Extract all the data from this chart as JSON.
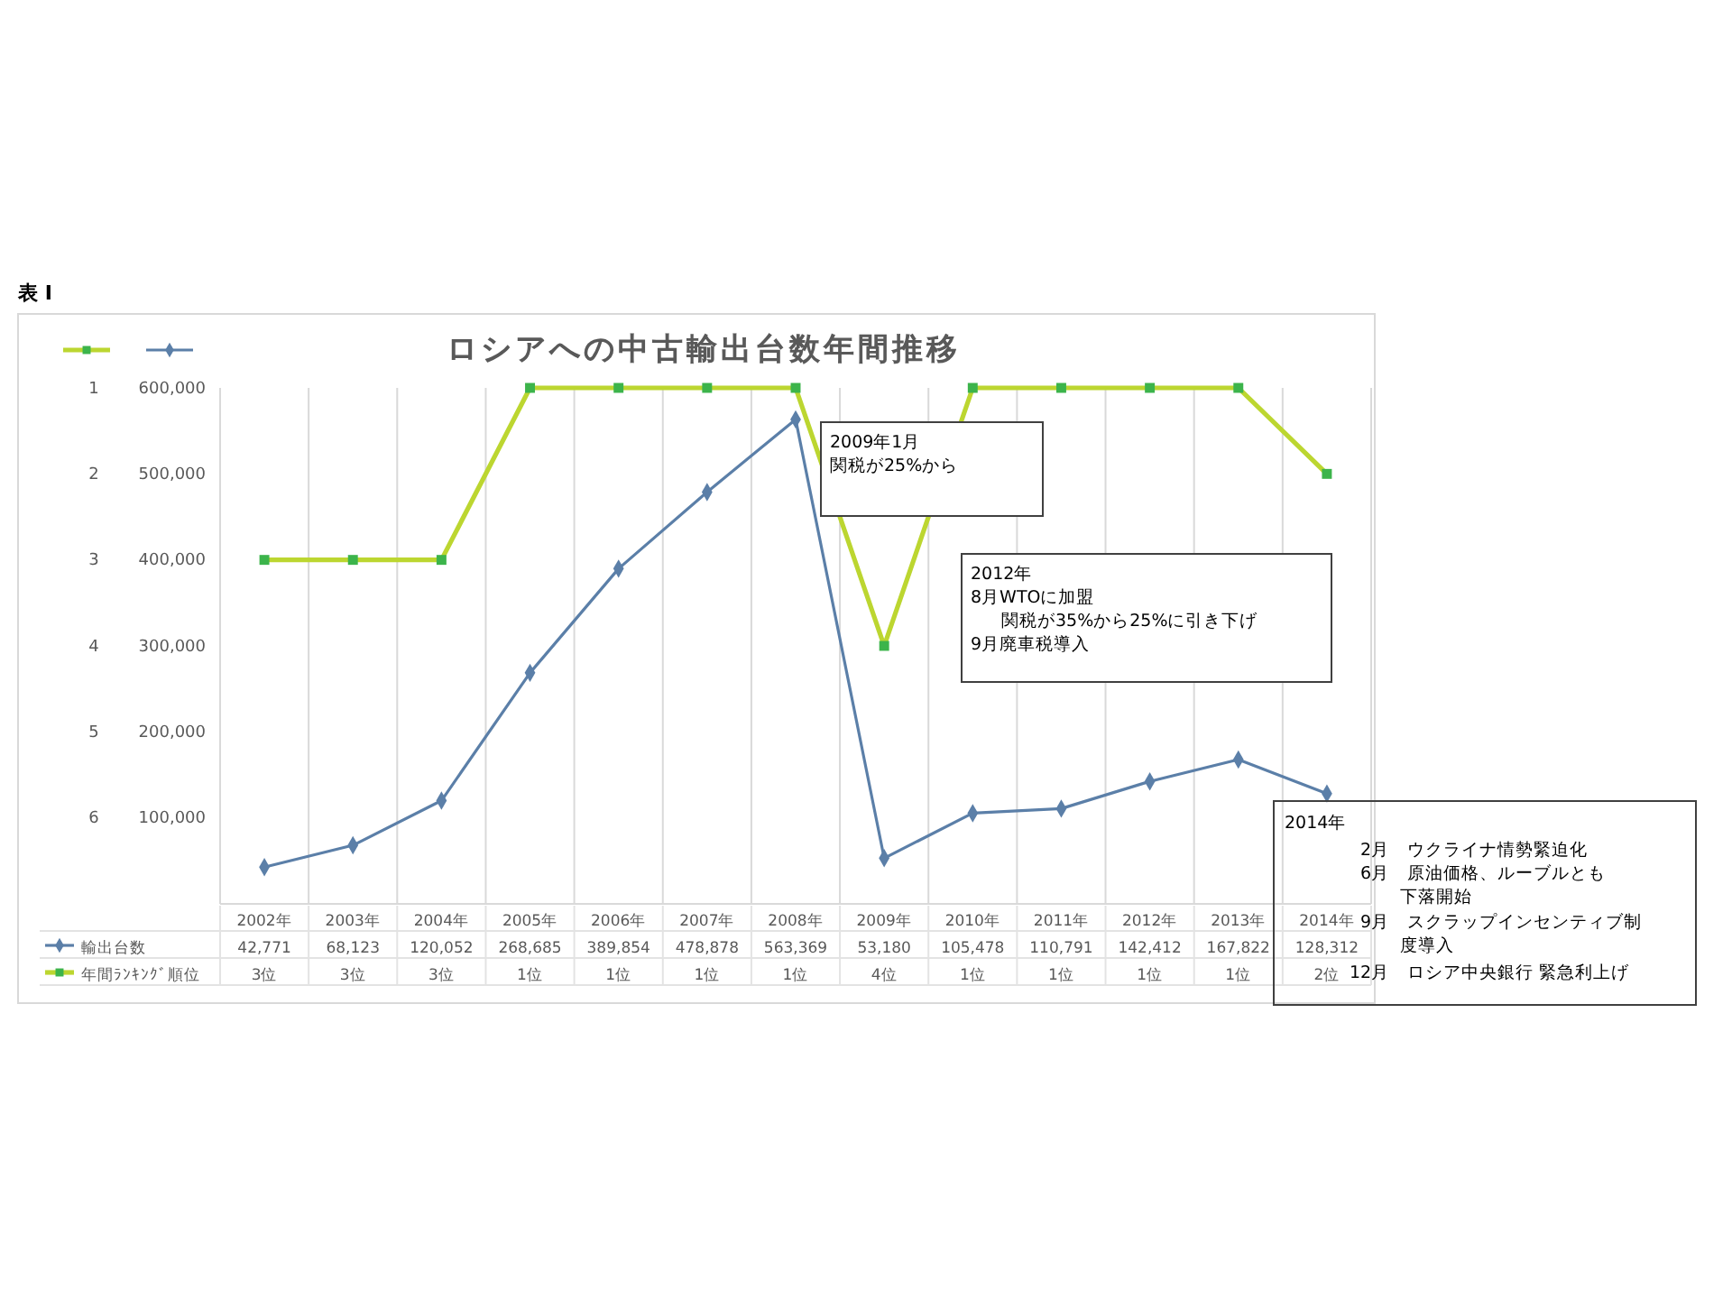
{
  "chart_data": {
    "type": "line",
    "title": "ロシアへの中古輸出台数年間推移",
    "categories": [
      "2002年",
      "2003年",
      "2004年",
      "2005年",
      "2006年",
      "2007年",
      "2008年",
      "2009年",
      "2010年",
      "2011年",
      "2012年",
      "2013年",
      "2014年"
    ],
    "series": [
      {
        "name": "年間ﾗﾝｷﾝｸﾞ順位",
        "color": "#bcd630",
        "axis": "y2",
        "marker": "square",
        "values": [
          3,
          3,
          3,
          1,
          1,
          1,
          1,
          4,
          1,
          1,
          1,
          1,
          2
        ],
        "value_labels": [
          "3位",
          "3位",
          "3位",
          "1位",
          "1位",
          "1位",
          "1位",
          "4位",
          "1位",
          "1位",
          "1位",
          "1位",
          "2位"
        ]
      },
      {
        "name": "輸出台数",
        "color": "#5b7fa8",
        "marker": "diamond",
        "values": [
          42771,
          68123,
          120052,
          268685,
          389854,
          478878,
          563369,
          53180,
          105478,
          110791,
          142412,
          167822,
          128312
        ],
        "value_labels": [
          "42,771",
          "68,123",
          "120,052",
          "268,685",
          "389,854",
          "478,878",
          "563,369",
          "53,180",
          "105,478",
          "110,791",
          "142,412",
          "167,822",
          "128,312"
        ]
      }
    ],
    "ylim": [
      0,
      600000
    ],
    "yticks": [
      {
        "value": 100000,
        "label": "100,000"
      },
      {
        "value": 200000,
        "label": "200,000"
      },
      {
        "value": 300000,
        "label": "300,000"
      },
      {
        "value": 400000,
        "label": "400,000"
      },
      {
        "value": 500000,
        "label": "500,000"
      },
      {
        "value": 600000,
        "label": "600,000"
      }
    ],
    "y2lim": [
      7,
      1
    ],
    "y2ticks": [
      1,
      2,
      3,
      4,
      5,
      6
    ],
    "grid": "x",
    "legend": "bottom left",
    "annotations": [
      "表 I",
      "2009年1月",
      "関税が25%から",
      "2012年",
      "8月WTOに加盟",
      "関税が35%から25%に引き下げ",
      "9月廃車税導入",
      "2014年",
      "2月　ウクライナ情勢緊迫化",
      "6月　原油価格、ルーブルとも",
      "下落開始",
      "9月　スクラップインセンティブ制",
      "度導入",
      "12月　ロシア中央銀行 緊急利上げ"
    ]
  }
}
